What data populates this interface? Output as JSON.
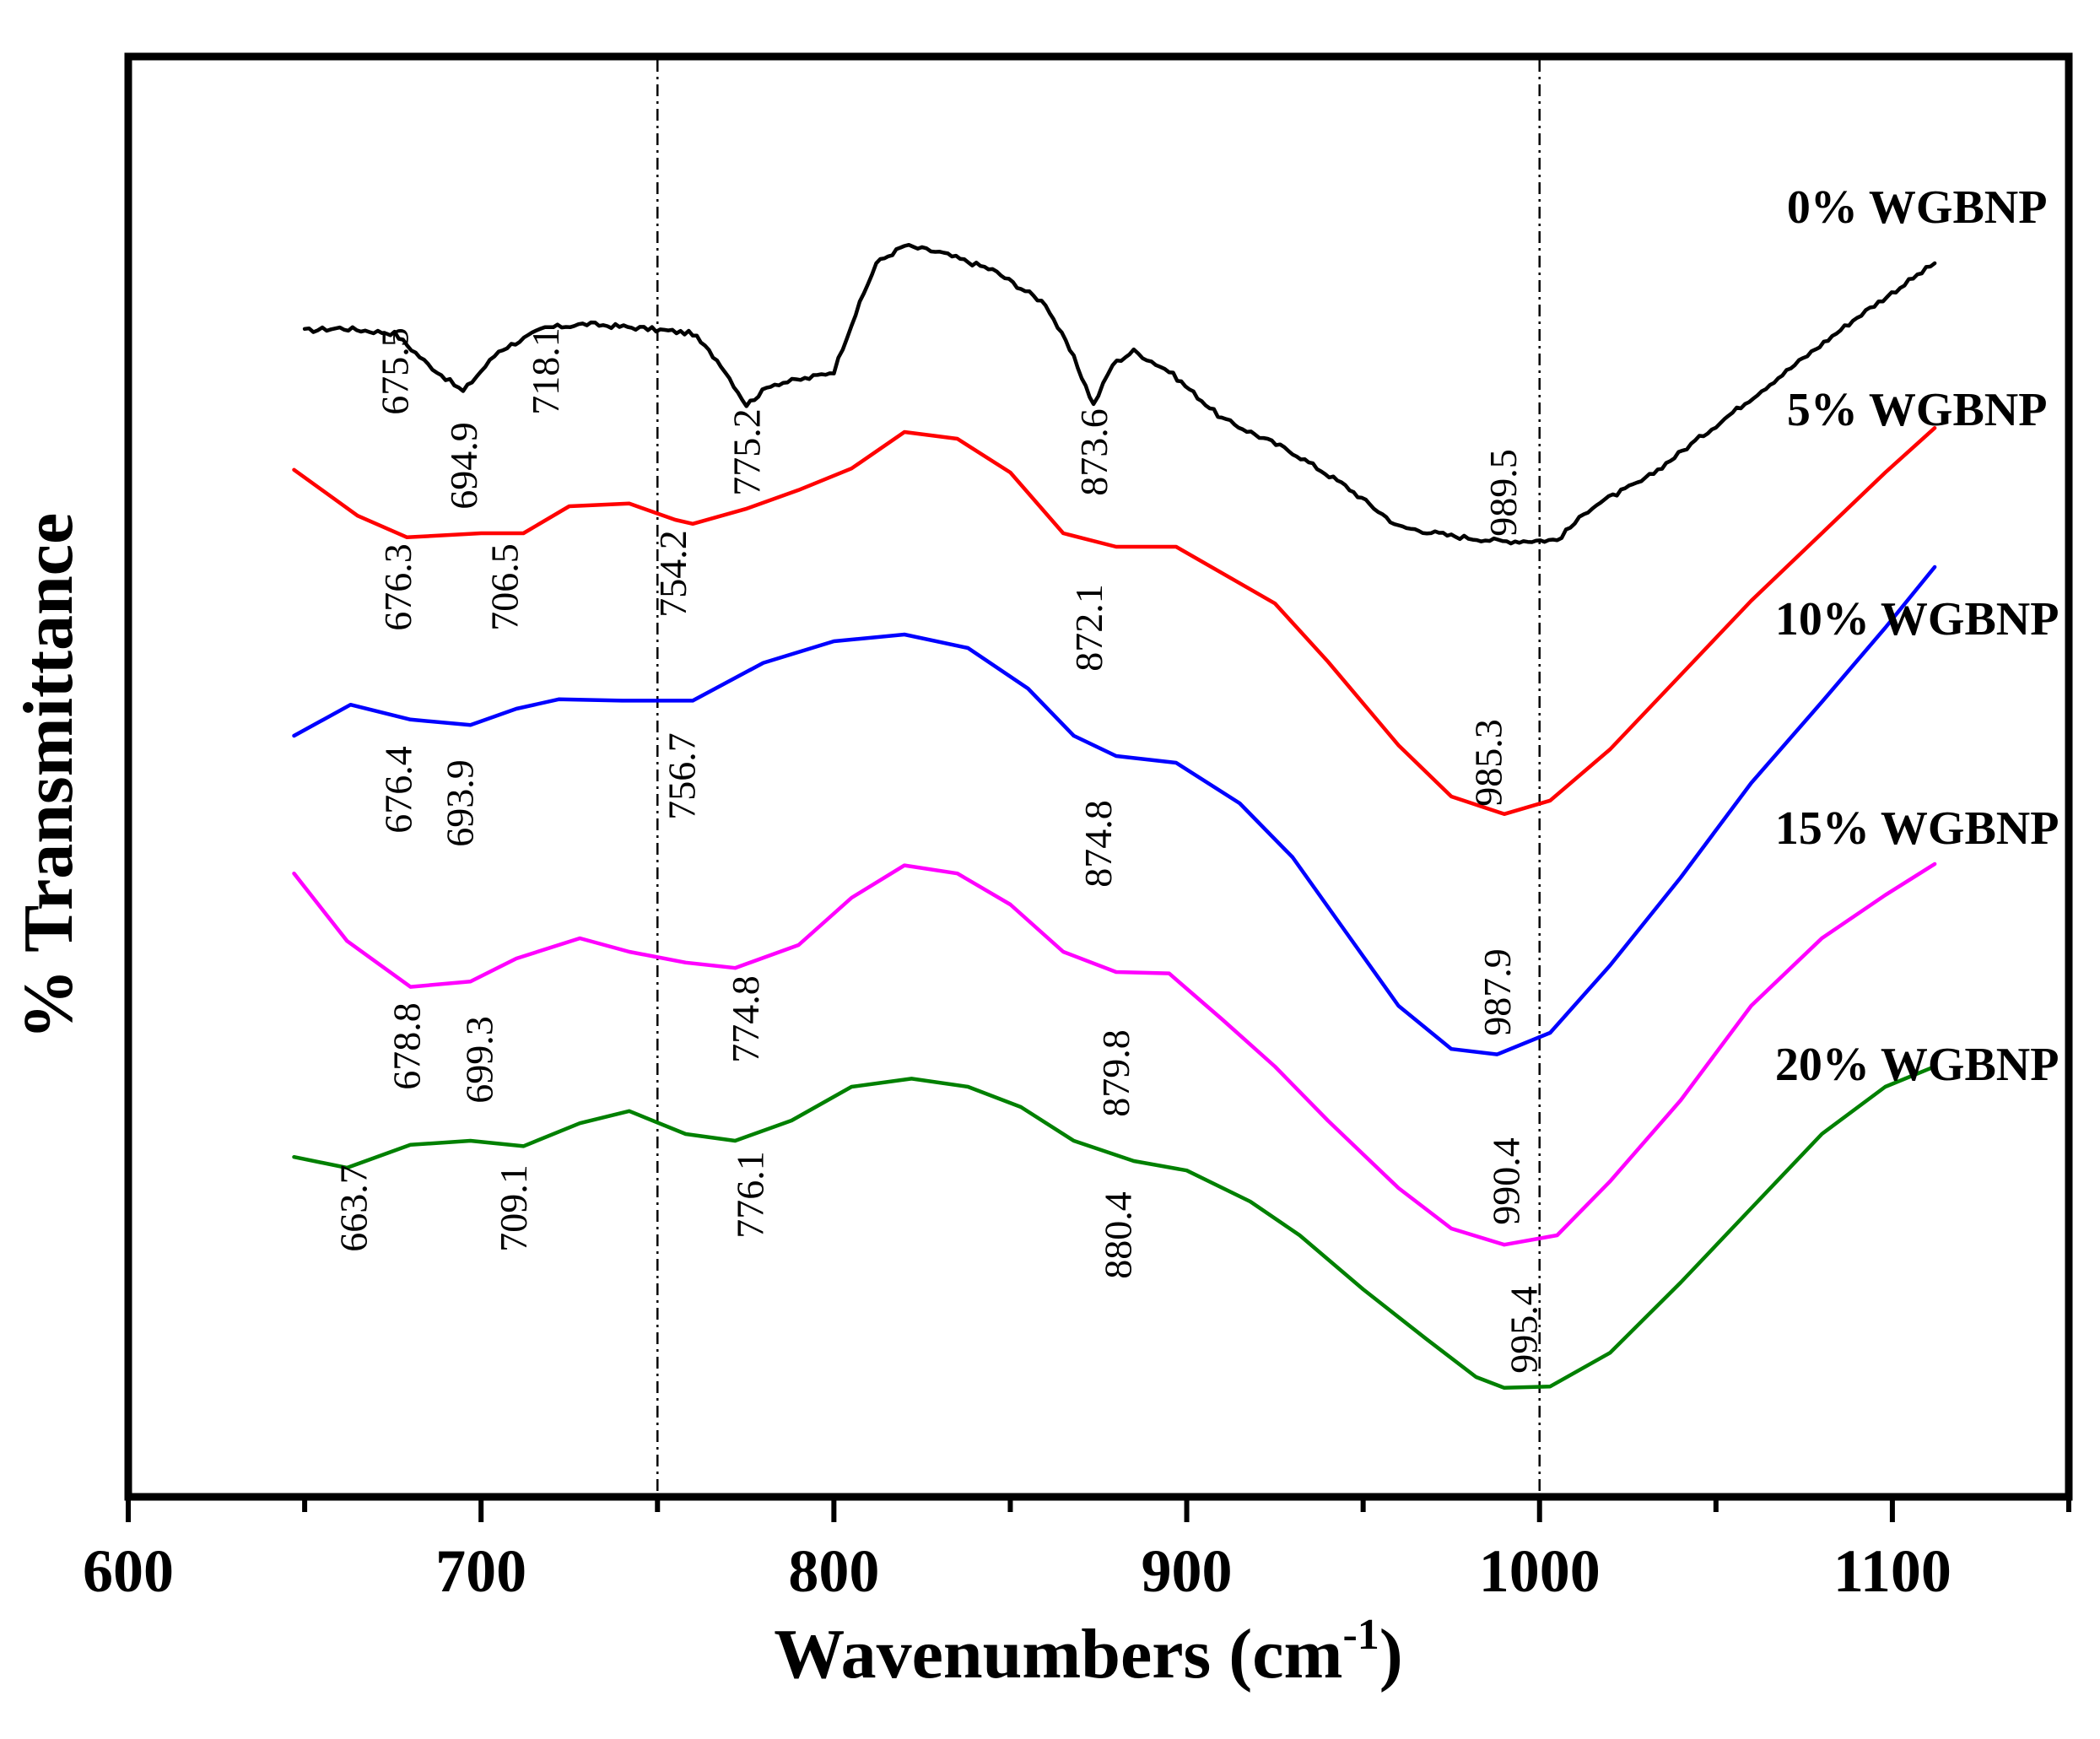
{
  "chart_data": {
    "type": "line",
    "title": "",
    "xlabel": "Wavenumbers (cm",
    "xlabel_sup": "-1",
    "xlabel_close": ")",
    "ylabel": "% Transmittance",
    "xlim": [
      600,
      1150
    ],
    "ylim": [
      0,
      100
    ],
    "x_ticks": [
      600,
      700,
      800,
      900,
      1000,
      1100
    ],
    "x_tick_labels": [
      "600",
      "700",
      "800",
      "900",
      "1000",
      "1100"
    ],
    "y_ticks_shown": false,
    "reference_lines": [
      750,
      1000
    ],
    "series": [
      {
        "name": "0% WGBNP",
        "color": "#000000",
        "noisy": true,
        "label_anchor": [
          1107,
          91
        ],
        "points": [
          [
            650,
            83
          ],
          [
            660,
            83.2
          ],
          [
            675.5,
            82.8
          ],
          [
            685,
            80.5
          ],
          [
            694.9,
            78.5
          ],
          [
            705,
            81.5
          ],
          [
            718.1,
            83.2
          ],
          [
            730,
            83.5
          ],
          [
            745,
            83.2
          ],
          [
            760,
            82.8
          ],
          [
            768,
            80.5
          ],
          [
            775.2,
            77.5
          ],
          [
            782,
            79
          ],
          [
            793,
            79.5
          ],
          [
            800,
            80
          ],
          [
            805,
            83.5
          ],
          [
            812,
            88
          ],
          [
            820,
            89.3
          ],
          [
            830,
            88.8
          ],
          [
            845,
            87.5
          ],
          [
            860,
            85
          ],
          [
            868,
            81
          ],
          [
            873.6,
            77.5
          ],
          [
            879,
            80.5
          ],
          [
            885,
            81.5
          ],
          [
            895,
            80
          ],
          [
            910,
            76.5
          ],
          [
            930,
            74
          ],
          [
            945,
            71.5
          ],
          [
            960,
            68.5
          ],
          [
            975,
            67.8
          ],
          [
            989.5,
            67.4
          ],
          [
            1005,
            67.5
          ],
          [
            1015,
            70
          ],
          [
            1030,
            72
          ],
          [
            1050,
            76
          ],
          [
            1070,
            80
          ],
          [
            1090,
            84
          ],
          [
            1112,
            88
          ]
        ],
        "peaks": [
          [
            675.5,
            80
          ],
          [
            694.9,
            73
          ],
          [
            718.1,
            80
          ],
          [
            775.2,
            74
          ],
          [
            873.6,
            74
          ],
          [
            989.5,
            71
          ]
        ]
      },
      {
        "name": "5% WGBNP",
        "color": "#ff0000",
        "noisy": false,
        "label_anchor": [
          1107,
          76
        ],
        "points": [
          [
            647,
            72.7
          ],
          [
            665,
            69.3
          ],
          [
            679,
            67.7
          ],
          [
            700,
            68
          ],
          [
            712,
            68
          ],
          [
            725,
            70
          ],
          [
            742,
            70.2
          ],
          [
            755,
            69
          ],
          [
            760,
            68.7
          ],
          [
            775,
            69.8
          ],
          [
            790,
            71.2
          ],
          [
            805,
            72.8
          ],
          [
            820,
            75.5
          ],
          [
            835,
            75
          ],
          [
            850,
            72.5
          ],
          [
            865,
            68
          ],
          [
            880,
            67
          ],
          [
            897,
            67
          ],
          [
            915,
            64.3
          ],
          [
            925,
            62.8
          ],
          [
            940,
            58.5
          ],
          [
            960,
            52.3
          ],
          [
            975,
            48.5
          ],
          [
            990,
            47.2
          ],
          [
            1003,
            48.2
          ],
          [
            1020,
            52
          ],
          [
            1040,
            57.5
          ],
          [
            1060,
            63
          ],
          [
            1080,
            68
          ],
          [
            1098,
            72.5
          ],
          [
            1112,
            75.8
          ]
        ],
        "peaks": [
          [
            676.3,
            64
          ],
          [
            706.5,
            64
          ],
          [
            754.2,
            65
          ],
          [
            872.1,
            61
          ],
          [
            985.3,
            51
          ]
        ]
      },
      {
        "name": "10% WGBNP",
        "color": "#0000ff",
        "noisy": false,
        "label_anchor": [
          1107,
          60.5
        ],
        "points": [
          [
            647,
            53
          ],
          [
            663,
            55.3
          ],
          [
            680,
            54.2
          ],
          [
            697,
            53.8
          ],
          [
            710,
            55
          ],
          [
            722,
            55.7
          ],
          [
            740,
            55.6
          ],
          [
            760,
            55.6
          ],
          [
            780,
            58.4
          ],
          [
            800,
            60
          ],
          [
            820,
            60.5
          ],
          [
            838,
            59.5
          ],
          [
            855,
            56.5
          ],
          [
            868,
            53
          ],
          [
            880,
            51.5
          ],
          [
            897,
            51
          ],
          [
            915,
            48
          ],
          [
            930,
            44
          ],
          [
            945,
            38.5
          ],
          [
            960,
            33
          ],
          [
            975,
            29.8
          ],
          [
            988,
            29.4
          ],
          [
            1003,
            31
          ],
          [
            1020,
            36
          ],
          [
            1040,
            42.5
          ],
          [
            1060,
            49.5
          ],
          [
            1080,
            55.5
          ],
          [
            1098,
            61
          ],
          [
            1112,
            65.5
          ]
        ],
        "peaks": [
          [
            676.4,
            49
          ],
          [
            693.9,
            48
          ],
          [
            756.7,
            50
          ],
          [
            874.8,
            45
          ],
          [
            987.9,
            34
          ]
        ]
      },
      {
        "name": "15% WGBNP",
        "color": "#ff00ff",
        "noisy": false,
        "label_anchor": [
          1107,
          45
        ],
        "points": [
          [
            647,
            42.8
          ],
          [
            662,
            37.8
          ],
          [
            680,
            34.4
          ],
          [
            697,
            34.8
          ],
          [
            710,
            36.5
          ],
          [
            728,
            38
          ],
          [
            742,
            37
          ],
          [
            758,
            36.2
          ],
          [
            772,
            35.8
          ],
          [
            790,
            37.5
          ],
          [
            805,
            41
          ],
          [
            820,
            43.4
          ],
          [
            835,
            42.8
          ],
          [
            850,
            40.5
          ],
          [
            865,
            37
          ],
          [
            880,
            35.5
          ],
          [
            895,
            35.4
          ],
          [
            910,
            32
          ],
          [
            925,
            28.5
          ],
          [
            940,
            24.5
          ],
          [
            960,
            19.5
          ],
          [
            975,
            16.5
          ],
          [
            990,
            15.3
          ],
          [
            1005,
            16
          ],
          [
            1020,
            20
          ],
          [
            1040,
            26
          ],
          [
            1060,
            33
          ],
          [
            1080,
            38
          ],
          [
            1098,
            41.2
          ],
          [
            1112,
            43.5
          ]
        ],
        "peaks": [
          [
            678.8,
            30
          ],
          [
            699.3,
            29
          ],
          [
            774.8,
            32
          ],
          [
            879.8,
            28
          ],
          [
            990.4,
            20
          ]
        ]
      },
      {
        "name": "20% WGBNP",
        "color": "#008000",
        "noisy": false,
        "label_anchor": [
          1107,
          27.5
        ],
        "points": [
          [
            647,
            21.8
          ],
          [
            662,
            21
          ],
          [
            680,
            22.7
          ],
          [
            697,
            23
          ],
          [
            712,
            22.6
          ],
          [
            728,
            24.3
          ],
          [
            742,
            25.2
          ],
          [
            758,
            23.5
          ],
          [
            772,
            23
          ],
          [
            788,
            24.5
          ],
          [
            805,
            27
          ],
          [
            822,
            27.6
          ],
          [
            838,
            27
          ],
          [
            853,
            25.5
          ],
          [
            868,
            23
          ],
          [
            885,
            21.5
          ],
          [
            900,
            20.8
          ],
          [
            918,
            18.5
          ],
          [
            932,
            16
          ],
          [
            950,
            12
          ],
          [
            968,
            8.3
          ],
          [
            982,
            5.5
          ],
          [
            990,
            4.7
          ],
          [
            1003,
            4.8
          ],
          [
            1020,
            7.3
          ],
          [
            1040,
            12.5
          ],
          [
            1060,
            18
          ],
          [
            1080,
            23.5
          ],
          [
            1098,
            27
          ],
          [
            1112,
            28.5
          ]
        ],
        "peaks": [
          [
            663.7,
            18
          ],
          [
            709.1,
            18
          ],
          [
            776.1,
            19
          ],
          [
            880.4,
            16
          ],
          [
            995.4,
            9
          ]
        ]
      }
    ]
  }
}
